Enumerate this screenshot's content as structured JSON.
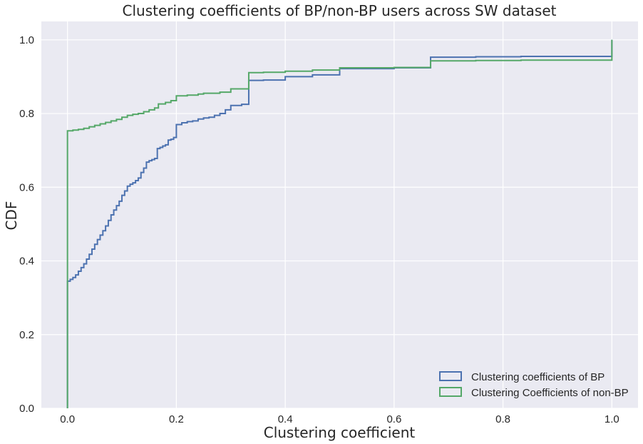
{
  "chart_data": {
    "type": "step-cdf",
    "title": "Clustering coefficients of BP/non-BP users across SW dataset",
    "xlabel": "Clustering coefficient",
    "ylabel": "CDF",
    "xlim": [
      -0.048,
      1.048
    ],
    "ylim": [
      0,
      1.05
    ],
    "xticks": [
      0.0,
      0.2,
      0.4,
      0.6,
      0.8,
      1.0
    ],
    "xtick_labels": [
      "0.0",
      "0.2",
      "0.4",
      "0.6",
      "0.8",
      "1.0"
    ],
    "yticks": [
      0.0,
      0.2,
      0.4,
      0.6,
      0.8,
      1.0
    ],
    "ytick_labels": [
      "0.0",
      "0.2",
      "0.4",
      "0.6",
      "0.8",
      "1.0"
    ],
    "grid": true,
    "legend_position": "bottom-right",
    "series": [
      {
        "name": "Clustering coefficients of BP",
        "color": "#4c72b0",
        "points": [
          [
            0.0,
            0.0
          ],
          [
            0.0,
            0.345
          ],
          [
            0.005,
            0.35
          ],
          [
            0.01,
            0.355
          ],
          [
            0.015,
            0.362
          ],
          [
            0.02,
            0.372
          ],
          [
            0.025,
            0.382
          ],
          [
            0.03,
            0.392
          ],
          [
            0.035,
            0.405
          ],
          [
            0.04,
            0.418
          ],
          [
            0.045,
            0.432
          ],
          [
            0.05,
            0.445
          ],
          [
            0.055,
            0.458
          ],
          [
            0.06,
            0.47
          ],
          [
            0.065,
            0.482
          ],
          [
            0.07,
            0.495
          ],
          [
            0.075,
            0.51
          ],
          [
            0.08,
            0.525
          ],
          [
            0.085,
            0.538
          ],
          [
            0.09,
            0.55
          ],
          [
            0.095,
            0.562
          ],
          [
            0.1,
            0.578
          ],
          [
            0.105,
            0.59
          ],
          [
            0.11,
            0.603
          ],
          [
            0.115,
            0.608
          ],
          [
            0.12,
            0.612
          ],
          [
            0.125,
            0.618
          ],
          [
            0.13,
            0.625
          ],
          [
            0.135,
            0.64
          ],
          [
            0.14,
            0.652
          ],
          [
            0.145,
            0.668
          ],
          [
            0.15,
            0.672
          ],
          [
            0.155,
            0.675
          ],
          [
            0.16,
            0.678
          ],
          [
            0.165,
            0.705
          ],
          [
            0.17,
            0.708
          ],
          [
            0.175,
            0.712
          ],
          [
            0.18,
            0.715
          ],
          [
            0.185,
            0.728
          ],
          [
            0.19,
            0.73
          ],
          [
            0.195,
            0.735
          ],
          [
            0.2,
            0.77
          ],
          [
            0.21,
            0.775
          ],
          [
            0.22,
            0.778
          ],
          [
            0.23,
            0.78
          ],
          [
            0.24,
            0.785
          ],
          [
            0.25,
            0.788
          ],
          [
            0.26,
            0.79
          ],
          [
            0.27,
            0.795
          ],
          [
            0.28,
            0.8
          ],
          [
            0.29,
            0.81
          ],
          [
            0.3,
            0.822
          ],
          [
            0.32,
            0.825
          ],
          [
            0.333,
            0.89
          ],
          [
            0.36,
            0.891
          ],
          [
            0.4,
            0.9
          ],
          [
            0.45,
            0.905
          ],
          [
            0.5,
            0.922
          ],
          [
            0.6,
            0.924
          ],
          [
            0.667,
            0.953
          ],
          [
            0.75,
            0.954
          ],
          [
            0.833,
            0.955
          ],
          [
            1.0,
            0.955
          ],
          [
            1.0,
            1.0
          ]
        ]
      },
      {
        "name": "Clustering Coefficients of non-BP",
        "color": "#55a868",
        "points": [
          [
            0.0,
            0.0
          ],
          [
            0.0,
            0.753
          ],
          [
            0.01,
            0.755
          ],
          [
            0.02,
            0.757
          ],
          [
            0.03,
            0.76
          ],
          [
            0.04,
            0.764
          ],
          [
            0.05,
            0.768
          ],
          [
            0.06,
            0.772
          ],
          [
            0.07,
            0.776
          ],
          [
            0.08,
            0.78
          ],
          [
            0.09,
            0.784
          ],
          [
            0.1,
            0.79
          ],
          [
            0.11,
            0.795
          ],
          [
            0.12,
            0.798
          ],
          [
            0.13,
            0.8
          ],
          [
            0.14,
            0.805
          ],
          [
            0.15,
            0.81
          ],
          [
            0.16,
            0.815
          ],
          [
            0.167,
            0.826
          ],
          [
            0.18,
            0.83
          ],
          [
            0.19,
            0.835
          ],
          [
            0.2,
            0.848
          ],
          [
            0.22,
            0.85
          ],
          [
            0.24,
            0.853
          ],
          [
            0.25,
            0.855
          ],
          [
            0.28,
            0.858
          ],
          [
            0.3,
            0.867
          ],
          [
            0.333,
            0.911
          ],
          [
            0.36,
            0.912
          ],
          [
            0.4,
            0.915
          ],
          [
            0.45,
            0.918
          ],
          [
            0.5,
            0.924
          ],
          [
            0.6,
            0.925
          ],
          [
            0.667,
            0.943
          ],
          [
            0.75,
            0.944
          ],
          [
            0.833,
            0.945
          ],
          [
            1.0,
            0.945
          ],
          [
            1.0,
            1.0
          ]
        ]
      }
    ]
  }
}
